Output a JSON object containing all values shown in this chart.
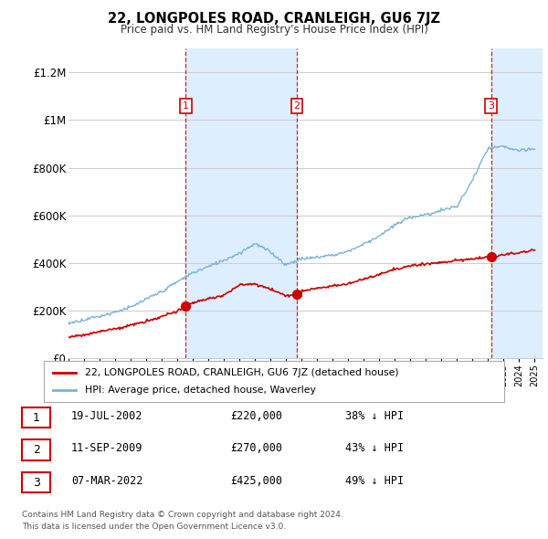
{
  "title": "22, LONGPOLES ROAD, CRANLEIGH, GU6 7JZ",
  "subtitle": "Price paid vs. HM Land Registry's House Price Index (HPI)",
  "ylim": [
    0,
    1300000
  ],
  "yticks": [
    0,
    200000,
    400000,
    600000,
    800000,
    1000000,
    1200000
  ],
  "ytick_labels": [
    "£0",
    "£200K",
    "£400K",
    "£600K",
    "£800K",
    "£1M",
    "£1.2M"
  ],
  "hpi_color": "#7ab3d4",
  "price_color": "#cc0000",
  "vline_color": "#cc0000",
  "shade_color": "#ddeeff",
  "background_color": "#ffffff",
  "grid_color": "#cccccc",
  "xstart": 1995,
  "xend": 2025.5,
  "transactions": [
    {
      "date_num": 2002.55,
      "price": 220000,
      "label": "1"
    },
    {
      "date_num": 2009.69,
      "price": 270000,
      "label": "2"
    },
    {
      "date_num": 2022.18,
      "price": 425000,
      "label": "3"
    }
  ],
  "legend_price_label": "22, LONGPOLES ROAD, CRANLEIGH, GU6 7JZ (detached house)",
  "legend_hpi_label": "HPI: Average price, detached house, Waverley",
  "footer_line1": "Contains HM Land Registry data © Crown copyright and database right 2024.",
  "footer_line2": "This data is licensed under the Open Government Licence v3.0.",
  "table_rows": [
    {
      "num": "1",
      "date": "19-JUL-2002",
      "price": "£220,000",
      "pct": "38% ↓ HPI"
    },
    {
      "num": "2",
      "date": "11-SEP-2009",
      "price": "£270,000",
      "pct": "43% ↓ HPI"
    },
    {
      "num": "3",
      "date": "07-MAR-2022",
      "price": "£425,000",
      "pct": "49% ↓ HPI"
    }
  ],
  "hpi_anchors_t": [
    1995,
    1996,
    1997,
    1998,
    1999,
    2000,
    2001,
    2002,
    2003,
    2004,
    2005,
    2006,
    2007,
    2008,
    2009,
    2010,
    2011,
    2012,
    2013,
    2014,
    2015,
    2016,
    2017,
    2018,
    2019,
    2020,
    2021,
    2022,
    2023,
    2024,
    2025
  ],
  "hpi_anchors_p": [
    148000,
    163000,
    178000,
    196000,
    215000,
    248000,
    278000,
    318000,
    355000,
    385000,
    410000,
    440000,
    480000,
    445000,
    390000,
    415000,
    420000,
    430000,
    445000,
    475000,
    510000,
    555000,
    590000,
    600000,
    620000,
    635000,
    750000,
    880000,
    890000,
    870000,
    880000
  ],
  "price_anchors_t": [
    1995,
    1996,
    1997,
    1998,
    1999,
    2000,
    2001,
    2002,
    2002.6,
    2003,
    2004,
    2005,
    2006,
    2007,
    2008,
    2009,
    2009.7,
    2010,
    2011,
    2012,
    2013,
    2014,
    2015,
    2016,
    2017,
    2018,
    2019,
    2020,
    2021,
    2022,
    2022.2,
    2023,
    2024,
    2025
  ],
  "price_anchors_p": [
    90000,
    100000,
    112000,
    125000,
    140000,
    158000,
    178000,
    200000,
    220000,
    235000,
    252000,
    268000,
    310000,
    315000,
    295000,
    265000,
    270000,
    285000,
    295000,
    305000,
    315000,
    335000,
    355000,
    375000,
    390000,
    400000,
    408000,
    415000,
    420000,
    428000,
    425000,
    435000,
    445000,
    455000
  ]
}
